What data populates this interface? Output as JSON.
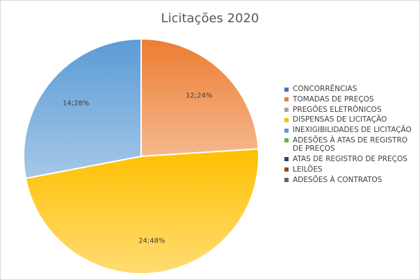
{
  "chart_data": {
    "type": "pie",
    "title": "Licitações 2020",
    "categories": [
      "CONCORRÊNCIAS",
      "TOMADAS DE PREÇOS",
      "PREGÕES ELETRÔNICOS",
      "DISPENSAS DE LICITAÇÃO",
      "INEXIGIBILIDADES DE LICITAÇÃO",
      "ADESÕES À ATAS DE REGISTRO DE PREÇOS",
      "ATAS DE REGISTRO DE PREÇOS",
      "LEILÕES",
      "ADESÕES À CONTRATOS"
    ],
    "values": [
      0,
      12,
      0,
      24,
      14,
      0,
      0,
      0,
      0
    ],
    "data_labels": [
      "",
      "12;24%",
      "",
      "24;48%",
      "14;28%",
      "",
      "",
      "",
      ""
    ],
    "colors": [
      "#4472c4",
      "#ed7d31",
      "#a5a5a5",
      "#ffc000",
      "#5b9bd5",
      "#70ad47",
      "#264478",
      "#9e480e",
      "#636363"
    ],
    "legend_position": "right"
  }
}
